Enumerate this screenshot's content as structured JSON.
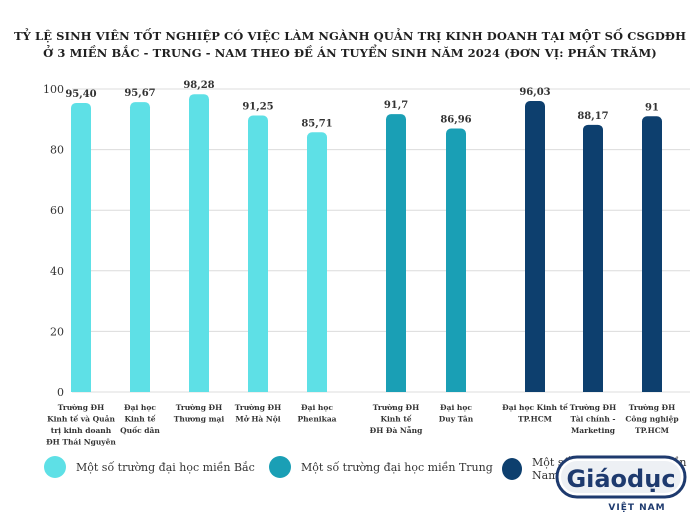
{
  "chart_data": {
    "type": "bar",
    "title_line1": "TỶ LỆ SINH VIÊN TỐT NGHIỆP CÓ VIỆC LÀM NGÀNH QUẢN TRỊ KINH DOANH TẠI MỘT SỐ CSGDĐH",
    "title_line2": "Ở 3 MIỀN BẮC - TRUNG - NAM THEO ĐỀ ÁN TUYỂN SINH NĂM 2024 (ĐƠN VỊ: PHẦN TRĂM)",
    "ylim": [
      0,
      100
    ],
    "yticks": [
      0,
      20,
      40,
      60,
      80,
      100
    ],
    "grid": true,
    "categories": [
      [
        "Trường ĐH",
        "Kinh tế và Quản",
        "trị kinh doanh",
        "ĐH Thái Nguyên"
      ],
      [
        "Đại học",
        "Kinh tế",
        "Quốc dân"
      ],
      [
        "Trường ĐH",
        "Thương mại"
      ],
      [
        "Trường ĐH",
        "Mở Hà Nội"
      ],
      [
        "Đại học",
        "Phenikaa"
      ],
      [
        "Trường ĐH",
        "Kinh tế",
        "ĐH Đà Nẵng"
      ],
      [
        "Đại học",
        "Duy Tân"
      ],
      [
        "Đại học Kinh tế",
        "TP.HCM"
      ],
      [
        "Trường ĐH",
        "Tài chính -",
        "Marketing"
      ],
      [
        "Trường ĐH",
        "Công nghiệp",
        "TP.HCM"
      ]
    ],
    "values": [
      95.4,
      95.67,
      98.28,
      91.25,
      85.71,
      91.7,
      86.96,
      96.03,
      88.17,
      91
    ],
    "value_labels": [
      "95,40",
      "95,67",
      "98,28",
      "91,25",
      "85,71",
      "91,7",
      "86,96",
      "96,03",
      "88,17",
      "91"
    ],
    "groups": [
      0,
      0,
      0,
      0,
      0,
      1,
      1,
      2,
      2,
      2
    ],
    "series": [
      {
        "name": "Một số trường đại học miền Bắc",
        "color": "#5ee0e6"
      },
      {
        "name": "Một số trường đại học miền Trung",
        "color": "#1a9fb5"
      },
      {
        "name": "Một số trường đại học miền Nam",
        "color": "#0d3f6e"
      }
    ]
  },
  "logo": {
    "text": "Giáodục",
    "subtext": "VIỆT NAM",
    "color": "#1e3a6e"
  }
}
